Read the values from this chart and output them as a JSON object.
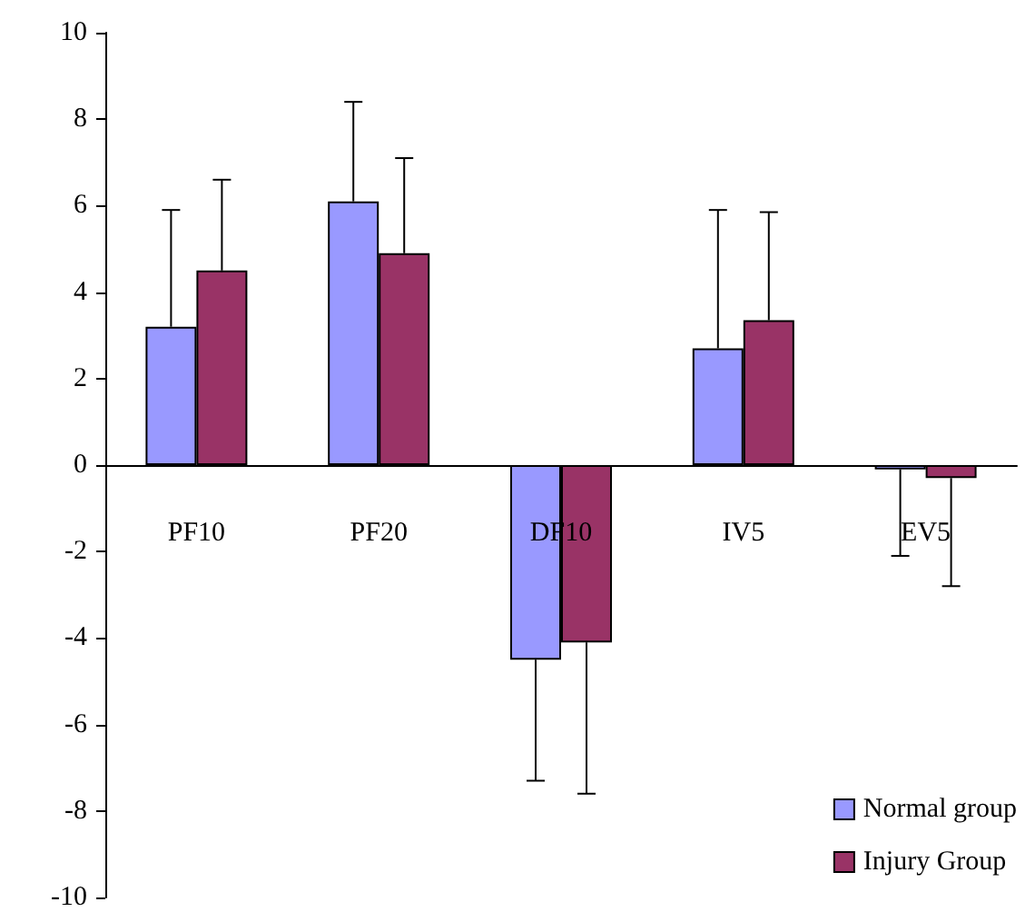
{
  "chart_data": {
    "type": "bar",
    "categories": [
      "PF10",
      "PF20",
      "DF10",
      "IV5",
      "EV5"
    ],
    "series": [
      {
        "name": "Normal group",
        "color": "#9999ff",
        "values": [
          3.2,
          6.1,
          -4.5,
          2.7,
          -0.1
        ],
        "errors": [
          [
            3.2,
            5.9
          ],
          [
            6.1,
            8.4
          ],
          [
            -7.3,
            -4.5
          ],
          [
            2.7,
            5.9
          ],
          [
            -2.1,
            -0.1
          ]
        ]
      },
      {
        "name": "Injury Group",
        "color": "#993366",
        "values": [
          4.5,
          4.9,
          -4.1,
          3.35,
          -0.3
        ],
        "errors": [
          [
            4.5,
            6.6
          ],
          [
            4.9,
            7.1
          ],
          [
            -7.6,
            -4.1
          ],
          [
            3.35,
            5.85
          ],
          [
            -2.8,
            -0.3
          ]
        ]
      }
    ],
    "ylim": [
      -10,
      10
    ],
    "yticks": [
      -10,
      -8,
      -6,
      -4,
      -2,
      0,
      2,
      4,
      6,
      8,
      10
    ],
    "grid": false,
    "legend": "bottom right"
  }
}
